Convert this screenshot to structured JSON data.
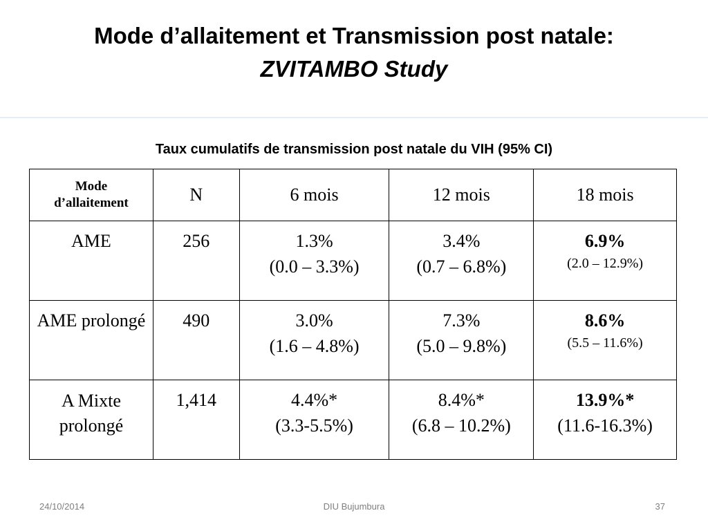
{
  "title": {
    "line1": "Mode d’allaitement et  Transmission post natale:",
    "line2": "ZVITAMBO Study"
  },
  "subtitle": "Taux cumulatifs de transmission post natale du VIH (95% CI)",
  "table": {
    "headers": [
      "Mode\nd’allaitement",
      "N",
      "6 mois",
      "12 mois",
      "18 mois"
    ],
    "rows": [
      {
        "label": "AME",
        "n": "256",
        "m6": {
          "value": "1.3%",
          "ci": "(0.0 – 3.3%)"
        },
        "m12": {
          "value": "3.4%",
          "ci": "(0.7 – 6.8%)"
        },
        "m18": {
          "value": "6.9%",
          "ci": "(2.0 – 12.9%)"
        }
      },
      {
        "label": "AME prolongé",
        "n": "490",
        "m6": {
          "value": "3.0%",
          "ci": "(1.6 – 4.8%)"
        },
        "m12": {
          "value": "7.3%",
          "ci": "(5.0 – 9.8%)"
        },
        "m18": {
          "value": "8.6%",
          "ci": "(5.5 – 11.6%)"
        }
      },
      {
        "label": "A Mixte prolongé",
        "n": "1,414",
        "m6": {
          "value": "4.4%*",
          "ci": "(3.3-5.5%)"
        },
        "m12": {
          "value": "8.4%*",
          "ci": "(6.8 – 10.2%)"
        },
        "m18": {
          "value": "13.9%*",
          "ci": "(11.6-16.3%)"
        }
      }
    ]
  },
  "footer": {
    "date": "24/10/2014",
    "center": "DIU Bujumbura",
    "page": "37"
  }
}
